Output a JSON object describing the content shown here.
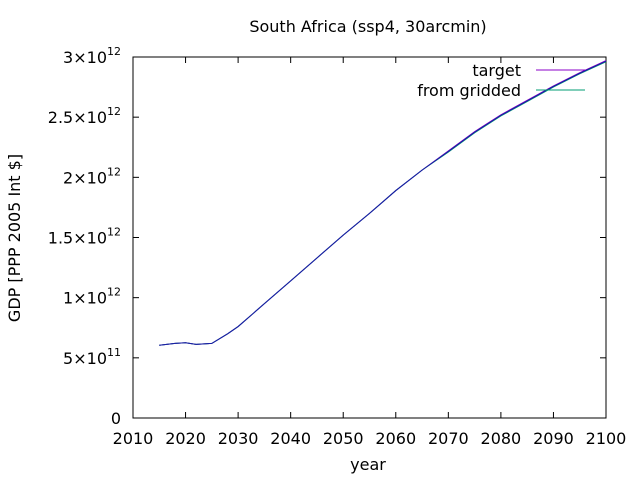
{
  "chart_data": {
    "type": "line",
    "title": "South Africa (ssp4, 30arcmin)",
    "xlabel": "year",
    "ylabel": "GDP [PPP 2005 Int $]",
    "xlim": [
      2010,
      2100
    ],
    "ylim": [
      0,
      3000000000000.0
    ],
    "grid": false,
    "legend_position": "top-right",
    "x_ticks": [
      2010,
      2020,
      2030,
      2040,
      2050,
      2060,
      2070,
      2080,
      2090,
      2100
    ],
    "x_tick_labels": [
      "2010",
      "2020",
      "2030",
      "2040",
      "2050",
      "2060",
      "2070",
      "2080",
      "2090",
      "2100"
    ],
    "y_ticks": [
      {
        "value": 0,
        "mantissa": "0",
        "exp": ""
      },
      {
        "value": 500000000000.0,
        "mantissa": "5×10",
        "exp": "11"
      },
      {
        "value": 1000000000000.0,
        "mantissa": "1×10",
        "exp": "12"
      },
      {
        "value": 1500000000000.0,
        "mantissa": "1.5×10",
        "exp": "12"
      },
      {
        "value": 2000000000000.0,
        "mantissa": "2×10",
        "exp": "12"
      },
      {
        "value": 2500000000000.0,
        "mantissa": "2.5×10",
        "exp": "12"
      },
      {
        "value": 3000000000000.0,
        "mantissa": "3×10",
        "exp": "12"
      }
    ],
    "x": [
      2015,
      2018,
      2020,
      2022,
      2025,
      2028,
      2030,
      2035,
      2040,
      2045,
      2050,
      2055,
      2060,
      2065,
      2070,
      2075,
      2080,
      2085,
      2090,
      2095,
      2100
    ],
    "series": [
      {
        "name": "target",
        "color": "#8b00c8",
        "values": [
          605000000000.0,
          620000000000.0,
          625000000000.0,
          612000000000.0,
          620000000000.0,
          700000000000.0,
          760000000000.0,
          950000000000.0,
          1140000000000.0,
          1330000000000.0,
          1520000000000.0,
          1700000000000.0,
          1890000000000.0,
          2060000000000.0,
          2220000000000.0,
          2380000000000.0,
          2520000000000.0,
          2640000000000.0,
          2760000000000.0,
          2870000000000.0,
          2970000000000.0
        ]
      },
      {
        "name": "from gridded",
        "color": "#009e73",
        "values": [
          605000000000.0,
          620000000000.0,
          625000000000.0,
          612000000000.0,
          620000000000.0,
          700000000000.0,
          760000000000.0,
          950000000000.0,
          1140000000000.0,
          1330000000000.0,
          1520000000000.0,
          1700000000000.0,
          1890000000000.0,
          2060000000000.0,
          2210000000000.0,
          2370000000000.0,
          2510000000000.0,
          2630000000000.0,
          2750000000000.0,
          2860000000000.0,
          2960000000000.0
        ]
      },
      {
        "name": "",
        "color": "#1a1aa6",
        "values": [
          605000000000.0,
          620000000000.0,
          625000000000.0,
          612000000000.0,
          620000000000.0,
          700000000000.0,
          760000000000.0,
          950000000000.0,
          1140000000000.0,
          1330000000000.0,
          1520000000000.0,
          1700000000000.0,
          1890000000000.0,
          2060000000000.0,
          2215000000000.0,
          2375000000000.0,
          2515000000000.0,
          2635000000000.0,
          2755000000000.0,
          2865000000000.0,
          2965000000000.0
        ]
      }
    ]
  }
}
